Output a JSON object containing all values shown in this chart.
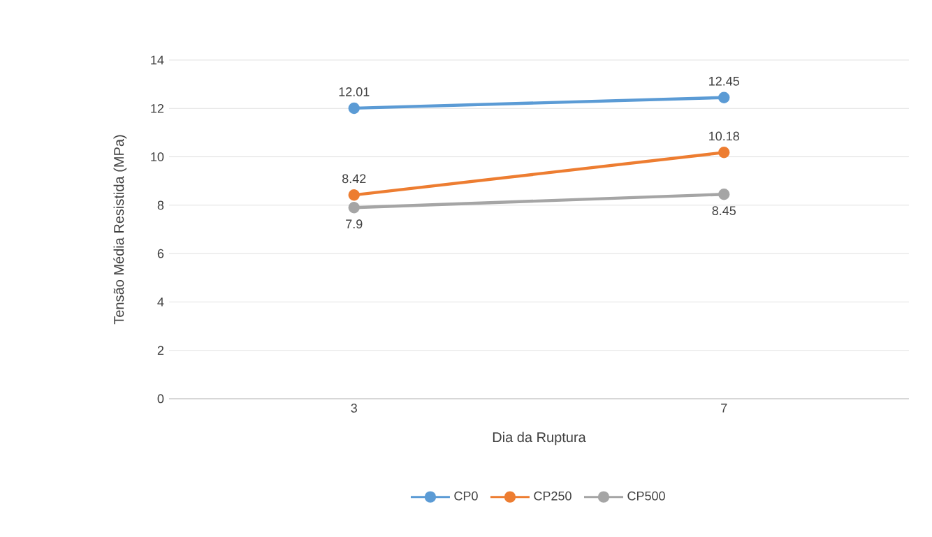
{
  "chart_data": {
    "type": "line",
    "xlabel": "Dia da Ruptura",
    "ylabel": "Tensão Média  Resistida (MPa)",
    "categories": [
      "3",
      "7"
    ],
    "series": [
      {
        "name": "CP0",
        "color": "#5b9bd5",
        "values": [
          12.01,
          12.45
        ]
      },
      {
        "name": "CP250",
        "color": "#ed7d31",
        "values": [
          8.42,
          10.18
        ]
      },
      {
        "name": "CP500",
        "color": "#a5a5a5",
        "values": [
          7.9,
          8.45
        ]
      }
    ],
    "ylim": [
      0,
      14
    ],
    "yticks": [
      0,
      2,
      4,
      6,
      8,
      10,
      12,
      14
    ],
    "grid": "y",
    "legend": "bottom",
    "marker": "circle",
    "line_style": "solid",
    "data_labels": true
  }
}
